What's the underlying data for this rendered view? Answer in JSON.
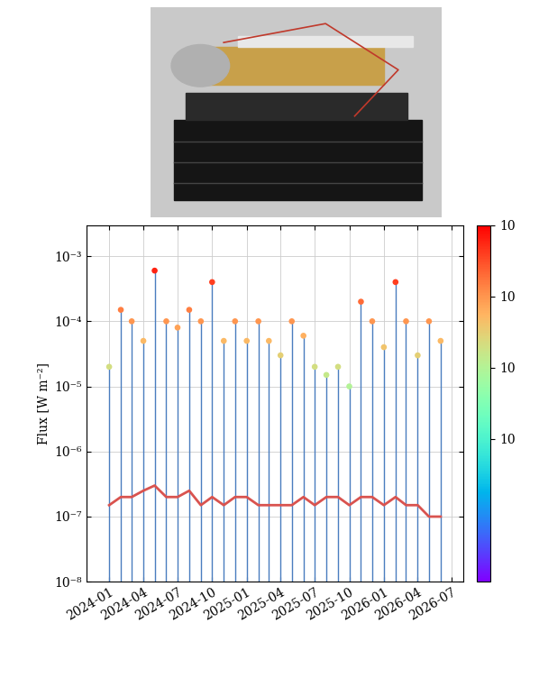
{
  "chart_data": {
    "type": "line",
    "log": "y",
    "grid": true,
    "ylabel": "Flux [W m⁻²]",
    "x": [
      "2024-01",
      "2024-02",
      "2024-03",
      "2024-04",
      "2024-05",
      "2024-06",
      "2024-07",
      "2024-08",
      "2024-09",
      "2024-10",
      "2024-11",
      "2024-12",
      "2025-01",
      "2025-02",
      "2025-03",
      "2025-04",
      "2025-05",
      "2025-06",
      "2025-07",
      "2025-08",
      "2025-09",
      "2025-10",
      "2025-11",
      "2025-12",
      "2026-01",
      "2026-02",
      "2026-03",
      "2026-04",
      "2026-05",
      "2026-06"
    ],
    "series": [
      {
        "type": "stem",
        "color": "#4a7dbf",
        "marker": "o",
        "values": [
          2e-05,
          0.00015,
          0.0001,
          5e-05,
          0.0006,
          0.0001,
          8e-05,
          0.00015,
          0.0001,
          0.0004,
          5e-05,
          0.0001,
          5e-05,
          0.0001,
          5e-05,
          3e-05,
          0.0001,
          6e-05,
          2e-05,
          1.5e-05,
          2e-05,
          1e-05,
          0.0002,
          0.0001,
          4e-05,
          0.0004,
          0.0001,
          3e-05,
          0.0001,
          5e-05
        ]
      },
      {
        "type": "line",
        "color": "#d9534f",
        "values": [
          1.5e-07,
          2e-07,
          2e-07,
          2.5e-07,
          3e-07,
          2e-07,
          2e-07,
          2.5e-07,
          1.5e-07,
          2e-07,
          1.5e-07,
          2e-07,
          2e-07,
          1.5e-07,
          1.5e-07,
          1.5e-07,
          1.5e-07,
          2e-07,
          1.5e-07,
          2e-07,
          2e-07,
          1.5e-07,
          2e-07,
          2e-07,
          1.5e-07,
          2e-07,
          1.5e-07,
          1.5e-07,
          1e-07,
          1e-07
        ]
      }
    ],
    "xlim": [
      "2023-11",
      "2026-08"
    ],
    "xticks": [
      "2024-01",
      "2024-04",
      "2024-07",
      "2024-10",
      "2025-01",
      "2025-04",
      "2025-07",
      "2025-10",
      "2026-01",
      "2026-04",
      "2026-07"
    ],
    "ylim": [
      1e-08,
      0.003
    ],
    "yticks": [
      {
        "value": 1e-08,
        "label": "10⁻⁸"
      },
      {
        "value": 1e-07,
        "label": "10⁻⁷"
      },
      {
        "value": 1e-06,
        "label": "10⁻⁶"
      },
      {
        "value": 1e-05,
        "label": "10⁻⁵"
      },
      {
        "value": 0.0001,
        "label": "10⁻⁴"
      },
      {
        "value": 0.001,
        "label": "10⁻³"
      }
    ],
    "colorbar": {
      "lim": [
        1e-08,
        0.001
      ],
      "ticks": [
        {
          "value": 0.001,
          "label": "10"
        },
        {
          "value": 0.0001,
          "label": "10"
        },
        {
          "value": 1e-05,
          "label": "10"
        },
        {
          "value": 1e-06,
          "label": "10"
        }
      ]
    }
  }
}
